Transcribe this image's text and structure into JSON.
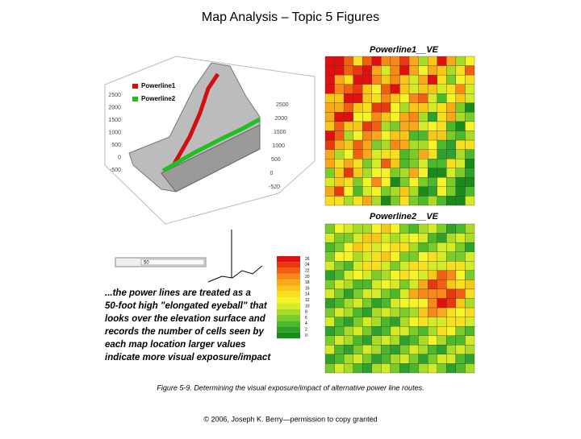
{
  "header": {
    "title": "Map Analysis – Topic 5 Figures"
  },
  "surface": {
    "legend": [
      "Powerline1",
      "Powerline2"
    ],
    "left_axis": [
      "2500",
      "2000",
      "1500",
      "1000",
      "500",
      "0",
      "-500"
    ],
    "right_axis": [
      "2500",
      "2000",
      "1500",
      "1000",
      "500",
      "0",
      "-520"
    ]
  },
  "maps": [
    {
      "title": "Powerline1__VE"
    },
    {
      "title": "Powerline2__VE"
    }
  ],
  "control": {
    "value": "50"
  },
  "color_legend": [
    "26",
    "24",
    "22",
    "20",
    "18",
    "16",
    "14",
    "12",
    "10",
    "8",
    "6",
    "4",
    "2",
    "0"
  ],
  "note": [
    "...the power lines are treated as a",
    "50-foot high \"elongated eyeball\" that",
    "looks over the elevation surface and",
    "records the number of cells seen by",
    "each map location     larger values",
    "indicate more visual exposure/impact"
  ],
  "caption": "Figure 5-9.  Determining the visual exposure/impact of alternative power line routes.",
  "footer": "© 2006, Joseph K. Berry—permission to copy granted"
}
